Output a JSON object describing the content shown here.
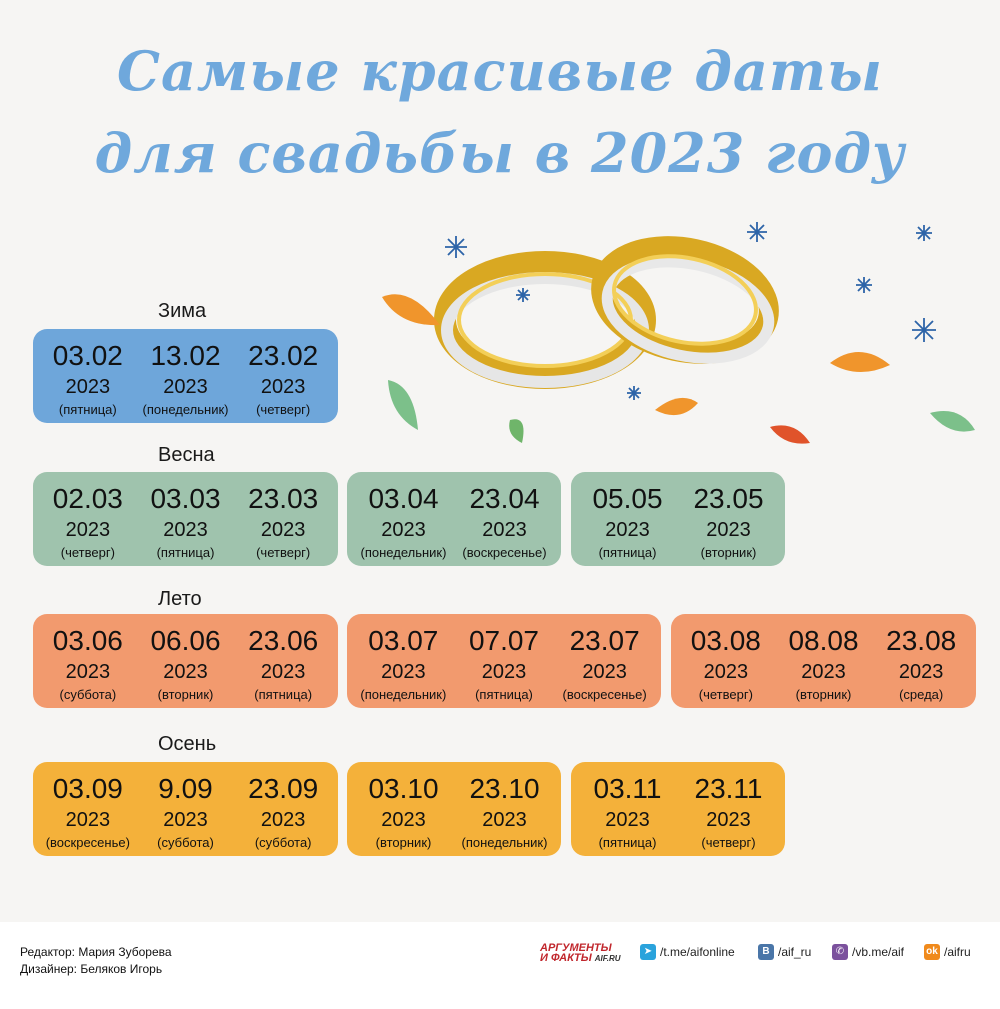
{
  "title": {
    "line1": "Самые красивые даты",
    "line2": "для свадьбы в 2023 году"
  },
  "seasons": {
    "winter": {
      "label": "Зима",
      "groups": [
        [
          {
            "date": "03.02",
            "year": "2023",
            "weekday": "(пятница)"
          },
          {
            "date": "13.02",
            "year": "2023",
            "weekday": "(понедельник)"
          },
          {
            "date": "23.02",
            "year": "2023",
            "weekday": "(четверг)"
          }
        ]
      ]
    },
    "spring": {
      "label": "Весна",
      "groups": [
        [
          {
            "date": "02.03",
            "year": "2023",
            "weekday": "(четверг)"
          },
          {
            "date": "03.03",
            "year": "2023",
            "weekday": "(пятница)"
          },
          {
            "date": "23.03",
            "year": "2023",
            "weekday": "(четверг)"
          }
        ],
        [
          {
            "date": "03.04",
            "year": "2023",
            "weekday": "(понедельник)"
          },
          {
            "date": "23.04",
            "year": "2023",
            "weekday": "(воскресенье)"
          }
        ],
        [
          {
            "date": "05.05",
            "year": "2023",
            "weekday": "(пятница)"
          },
          {
            "date": "23.05",
            "year": "2023",
            "weekday": "(вторник)"
          }
        ]
      ]
    },
    "summer": {
      "label": "Лето",
      "groups": [
        [
          {
            "date": "03.06",
            "year": "2023",
            "weekday": "(суббота)"
          },
          {
            "date": "06.06",
            "year": "2023",
            "weekday": "(вторник)"
          },
          {
            "date": "23.06",
            "year": "2023",
            "weekday": "(пятница)"
          }
        ],
        [
          {
            "date": "03.07",
            "year": "2023",
            "weekday": "(понедельник)"
          },
          {
            "date": "07.07",
            "year": "2023",
            "weekday": "(пятница)"
          },
          {
            "date": "23.07",
            "year": "2023",
            "weekday": "(воскресенье)"
          }
        ],
        [
          {
            "date": "03.08",
            "year": "2023",
            "weekday": "(четверг)"
          },
          {
            "date": "08.08",
            "year": "2023",
            "weekday": "(вторник)"
          },
          {
            "date": "23.08",
            "year": "2023",
            "weekday": "(среда)"
          }
        ]
      ]
    },
    "autumn": {
      "label": "Осень",
      "groups": [
        [
          {
            "date": "03.09",
            "year": "2023",
            "weekday": "(воскресенье)"
          },
          {
            "date": "9.09",
            "year": "2023",
            "weekday": "(суббота)"
          },
          {
            "date": "23.09",
            "year": "2023",
            "weekday": "(суббота)"
          }
        ],
        [
          {
            "date": "03.10",
            "year": "2023",
            "weekday": "(вторник)"
          },
          {
            "date": "23.10",
            "year": "2023",
            "weekday": "(понедельник)"
          }
        ],
        [
          {
            "date": "03.11",
            "year": "2023",
            "weekday": "(пятница)"
          },
          {
            "date": "23.11",
            "year": "2023",
            "weekday": "(четверг)"
          }
        ]
      ]
    }
  },
  "colors": {
    "winter": "#6ea6da",
    "spring": "#9fc3ad",
    "summer": "#f29a6e",
    "autumn": "#f4b13a",
    "title": "#6fa8dc"
  },
  "footer": {
    "editor": "Редактор: Мария Зуборева",
    "designer": "Дизайнер: Беляков Игорь",
    "brand_line1": "АРГУМЕНТЫ",
    "brand_line2": "И ФАКТЫ",
    "brand_site": "AIF.RU",
    "social": [
      {
        "icon": "telegram-icon",
        "text": "/t.me/aifonline"
      },
      {
        "icon": "vk-icon",
        "text": "/aif_ru"
      },
      {
        "icon": "viber-icon",
        "text": "/vb.me/aif"
      },
      {
        "icon": "odnoklassniki-icon",
        "text": "/aifru"
      }
    ]
  }
}
